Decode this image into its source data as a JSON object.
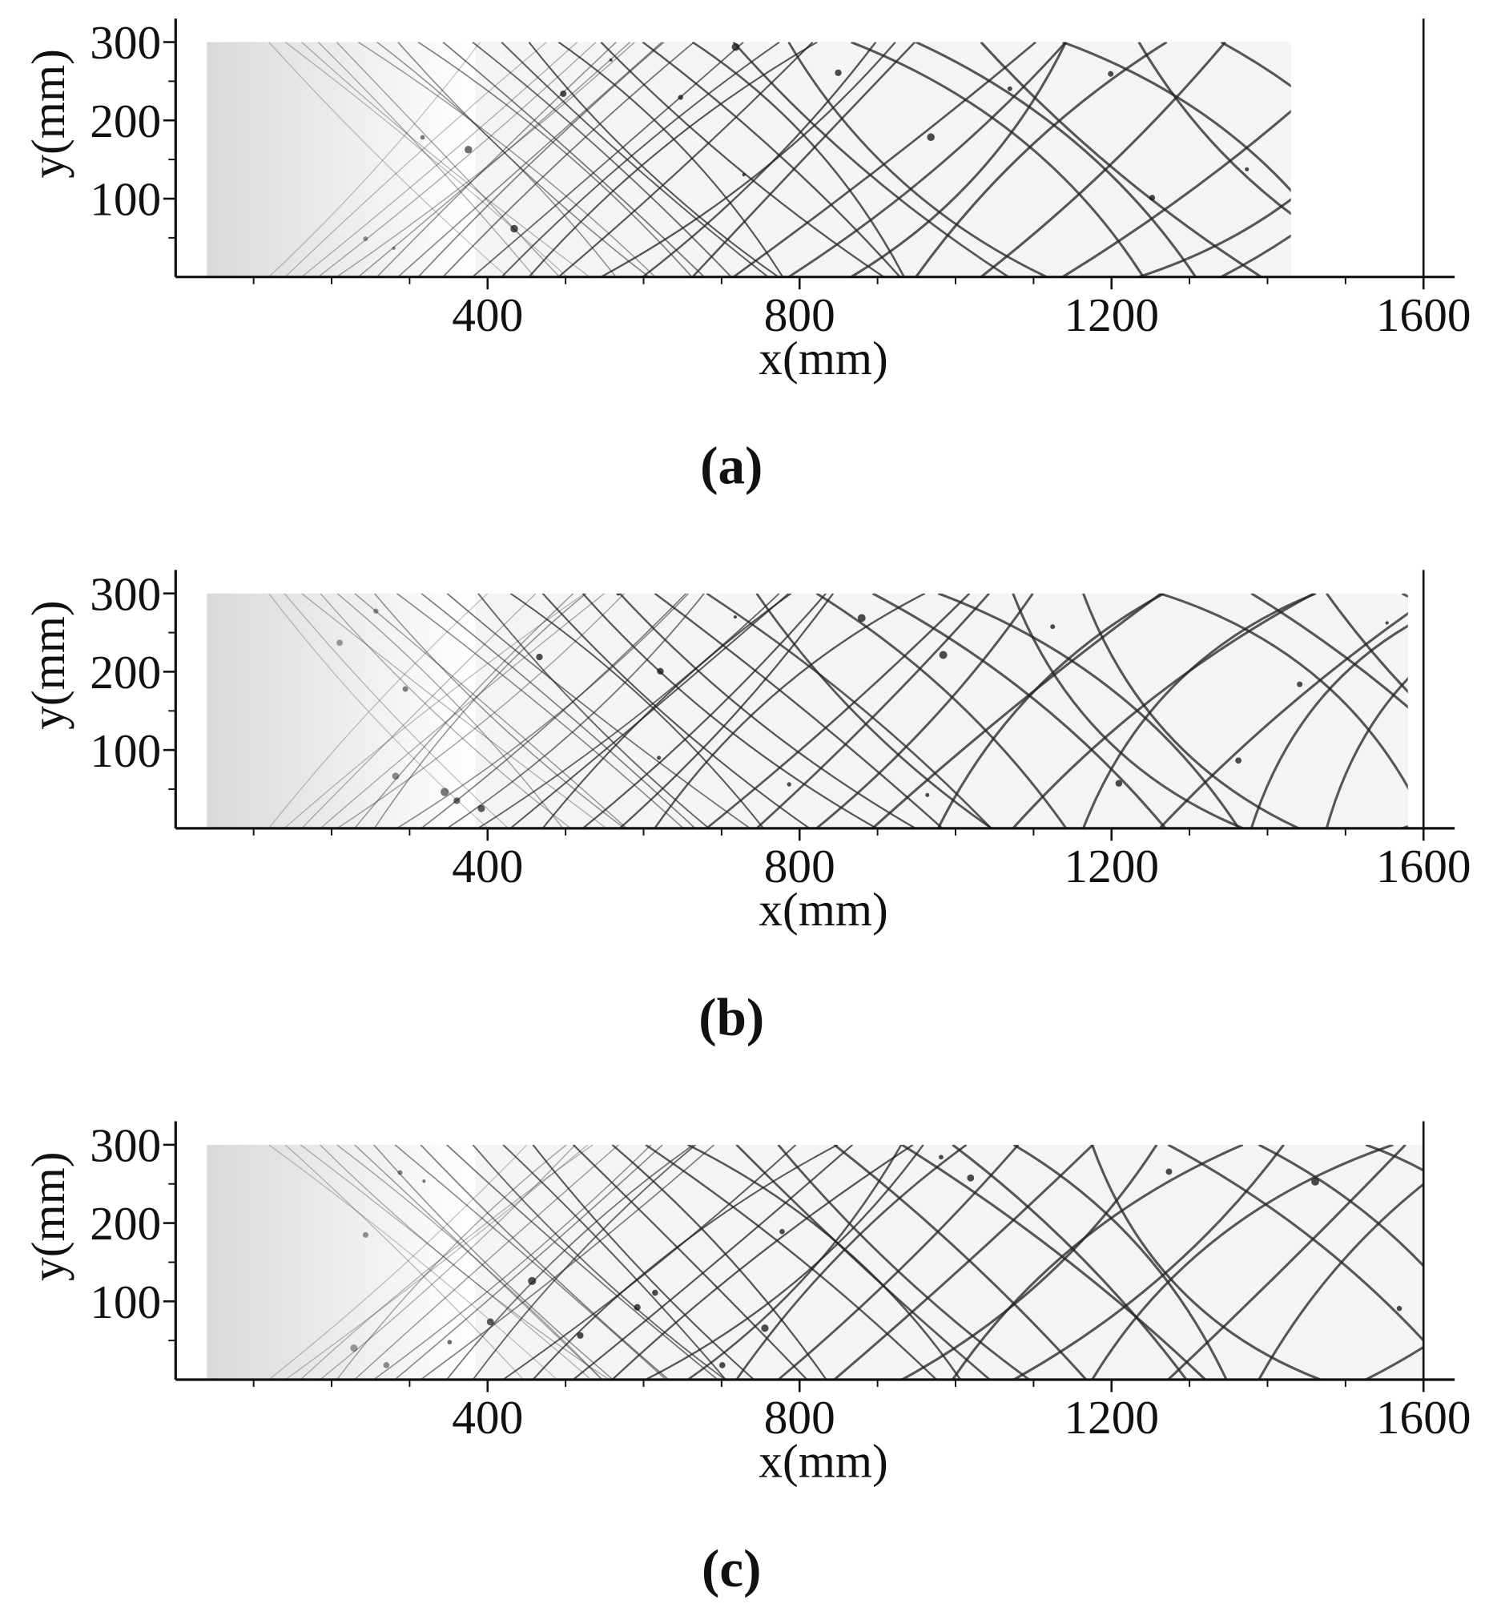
{
  "chart_data": [
    {
      "type": "image",
      "caption": "(a)",
      "xlabel": "x(mm)",
      "ylabel": "y(mm)",
      "xlim": [
        0,
        1640
      ],
      "ylim": [
        0,
        330
      ],
      "xticks": [
        400,
        800,
        1200,
        1600
      ],
      "yticks": [
        100,
        200,
        300
      ],
      "x_minor_ticks": [
        100,
        200,
        300,
        500,
        600,
        700,
        900,
        1000,
        1100,
        1300,
        1400,
        1500
      ],
      "y_minor_ticks": [
        50,
        150,
        250
      ],
      "field_x": [
        40,
        1430
      ],
      "field_y": [
        0,
        300
      ]
    },
    {
      "type": "image",
      "caption": "(b)",
      "xlabel": "x(mm)",
      "ylabel": "y(mm)",
      "xlim": [
        0,
        1640
      ],
      "ylim": [
        0,
        330
      ],
      "xticks": [
        400,
        800,
        1200,
        1600
      ],
      "yticks": [
        100,
        200,
        300
      ],
      "x_minor_ticks": [
        100,
        200,
        300,
        500,
        600,
        700,
        900,
        1000,
        1100,
        1300,
        1400,
        1500
      ],
      "y_minor_ticks": [
        50,
        150,
        250
      ],
      "field_x": [
        40,
        1580
      ],
      "field_y": [
        0,
        300
      ]
    },
    {
      "type": "image",
      "caption": "(c)",
      "xlabel": "x(mm)",
      "ylabel": "y(mm)",
      "xlim": [
        0,
        1640
      ],
      "ylim": [
        0,
        330
      ],
      "xticks": [
        400,
        800,
        1200,
        1600
      ],
      "yticks": [
        100,
        200,
        300
      ],
      "x_minor_ticks": [
        100,
        200,
        300,
        500,
        600,
        700,
        900,
        1000,
        1100,
        1300,
        1400,
        1500
      ],
      "y_minor_ticks": [
        50,
        150,
        250
      ],
      "field_x": [
        40,
        1600
      ],
      "field_y": [
        0,
        300
      ]
    }
  ]
}
